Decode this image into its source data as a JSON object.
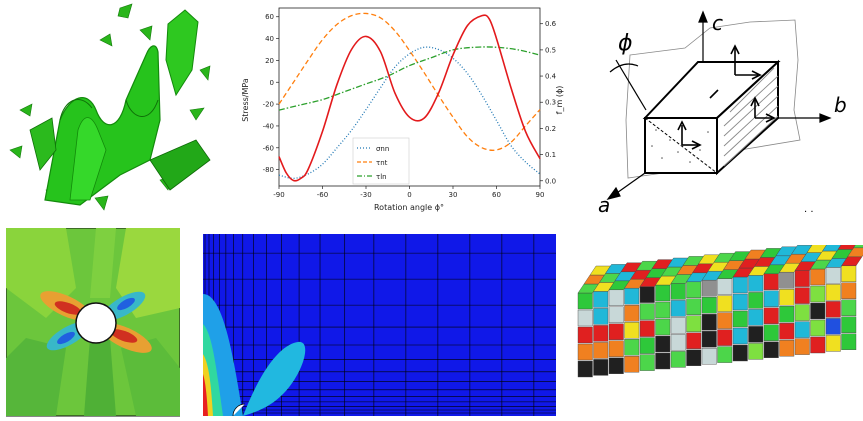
{
  "chart_data": {
    "type": "line",
    "xlabel": "Rotation angle ϕ°",
    "ylabel": "Stress/MPa",
    "y2label": "f_m (ϕ)",
    "xlim": [
      -90,
      90
    ],
    "ylim": [
      -95,
      68
    ],
    "y2lim": [
      -0.02,
      0.66
    ],
    "xticks": [
      "-90",
      "-60",
      "-30",
      "0",
      "30",
      "60",
      "90"
    ],
    "yticks": [
      "60",
      "40",
      "20",
      "0",
      "-20",
      "-40",
      "-60",
      "-80"
    ],
    "y2ticks": [
      "0.6",
      "0.5",
      "0.4",
      "0.3",
      "0.2",
      "0.1",
      "0.0"
    ],
    "legend_position": "lower-center",
    "series": [
      {
        "name": "σnn",
        "axis": "left",
        "color": "#1f77b4",
        "style": "dotted",
        "x": [
          -90,
          -80,
          -70,
          -60,
          -50,
          -40,
          -30,
          -20,
          -10,
          0,
          10,
          20,
          30,
          40,
          50,
          60,
          70,
          80,
          90
        ],
        "values": [
          -85,
          -88,
          -84,
          -75,
          -60,
          -44,
          -25,
          -5,
          14,
          26,
          32,
          30,
          22,
          8,
          -12,
          -35,
          -58,
          -73,
          -84
        ]
      },
      {
        "name": "τnt",
        "axis": "left",
        "color": "#ff7f0e",
        "style": "dashed",
        "x": [
          -90,
          -80,
          -70,
          -60,
          -50,
          -40,
          -30,
          -20,
          -10,
          0,
          10,
          20,
          30,
          40,
          50,
          60,
          70,
          80,
          90
        ],
        "values": [
          -20,
          0,
          20,
          39,
          53,
          61,
          63,
          59,
          47,
          29,
          9,
          -12,
          -32,
          -50,
          -60,
          -62,
          -55,
          -40,
          -25
        ]
      },
      {
        "name": "τln",
        "axis": "right",
        "color": "#2ca02c",
        "style": "dashdot",
        "x": [
          -90,
          -75,
          -60,
          -45,
          -30,
          -15,
          0,
          15,
          30,
          45,
          60,
          75,
          90
        ],
        "values": [
          0.27,
          0.29,
          0.31,
          0.34,
          0.37,
          0.4,
          0.44,
          0.47,
          0.5,
          0.51,
          0.51,
          0.5,
          0.48
        ]
      },
      {
        "name": "",
        "axis": "left",
        "color": "#e31a1c",
        "style": "solid",
        "x": [
          -90,
          -85,
          -80,
          -75,
          -70,
          -60,
          -50,
          -40,
          -30,
          -20,
          -10,
          0,
          10,
          20,
          30,
          40,
          50,
          55,
          60,
          70,
          80,
          90
        ],
        "values": [
          -68,
          -83,
          -90,
          -88,
          -80,
          -45,
          -2,
          30,
          42,
          28,
          -10,
          -32,
          -33,
          -10,
          25,
          52,
          61,
          58,
          40,
          -5,
          -45,
          -70
        ]
      }
    ]
  },
  "diagram": {
    "phi": "ϕ",
    "a": "a",
    "b": "b",
    "c": "c",
    "note": ". ."
  },
  "colors": {
    "fem_blue": "#1020e0",
    "mesh_green": "#7fd43a",
    "crack_green": "#22b014"
  }
}
